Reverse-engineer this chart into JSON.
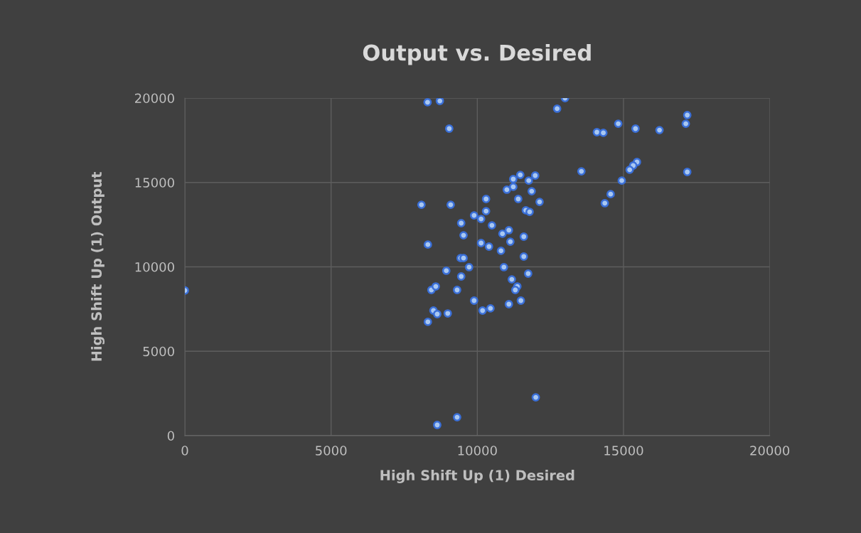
{
  "chart_data": {
    "type": "scatter",
    "title": "Output vs. Desired",
    "xlabel": "High Shift Up (1) Desired",
    "ylabel": "High Shift Up (1) Output",
    "x": [
      0,
      8300,
      8720,
      9040,
      13000,
      12730,
      14090,
      14310,
      14820,
      15410,
      16230,
      17180,
      17130,
      13560,
      17180,
      15460,
      15330,
      15210,
      14940,
      14560,
      14360,
      11470,
      11980,
      11230,
      11760,
      11010,
      11230,
      11860,
      11400,
      12130,
      11660,
      11790,
      10300,
      10300,
      8090,
      9090,
      9890,
      10130,
      9450,
      10500,
      9530,
      10860,
      11080,
      11590,
      11130,
      10130,
      10400,
      10810,
      8310,
      11590,
      9430,
      9530,
      8940,
      9720,
      10910,
      11740,
      9450,
      11180,
      11370,
      11300,
      8430,
      8580,
      9310,
      9890,
      11490,
      11080,
      10180,
      10450,
      8500,
      8630,
      8990,
      8310,
      12000,
      9310,
      8630
    ],
    "values": [
      8600,
      19750,
      19830,
      18190,
      20000,
      19370,
      17980,
      17940,
      18480,
      18190,
      18100,
      18990,
      18480,
      15660,
      15620,
      16210,
      16000,
      15750,
      15110,
      14310,
      13770,
      15450,
      15410,
      15200,
      15110,
      14570,
      14740,
      14480,
      14020,
      13850,
      13350,
      13260,
      14020,
      13300,
      13680,
      13680,
      13050,
      12840,
      12590,
      12460,
      11870,
      11960,
      12170,
      11790,
      11490,
      11410,
      11200,
      10950,
      11320,
      10610,
      10520,
      10520,
      9770,
      9980,
      9980,
      9600,
      9430,
      9260,
      8840,
      8630,
      8630,
      8840,
      8630,
      8000,
      8000,
      7790,
      7410,
      7540,
      7410,
      7200,
      7240,
      6740,
      2270,
      1090,
      630
    ],
    "color": "#a9c8f2",
    "marker": "circle",
    "grid": true,
    "xlim": [
      0,
      20000
    ],
    "xticks": [
      0,
      5000,
      10000,
      15000,
      20000
    ],
    "ylim": [
      0,
      20000
    ],
    "yticks": [
      0,
      5000,
      10000,
      15000,
      20000
    ]
  }
}
